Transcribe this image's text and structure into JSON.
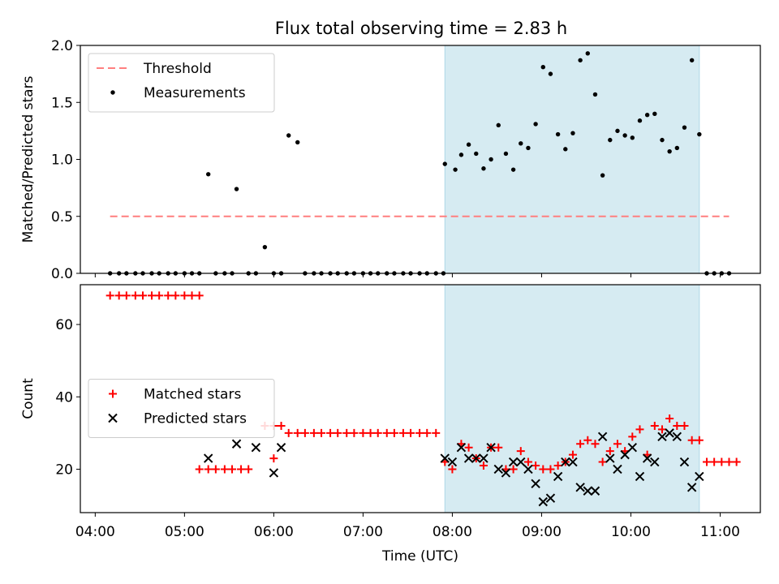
{
  "chart_data": {
    "type": "scatter",
    "title": "Flux total observing time = 2.83 h",
    "xlabel": "Time (UTC)",
    "x_ticks": [
      "04:00",
      "05:00",
      "06:00",
      "07:00",
      "08:00",
      "09:00",
      "10:00",
      "11:00"
    ],
    "x_range": [
      "03:50",
      "11:27"
    ],
    "shaded_interval": {
      "start": "07:55",
      "end": "10:46",
      "color": "#add8e6"
    },
    "panels": [
      {
        "ylabel": "Matched/Predicted stars",
        "ylim": [
          0,
          2.0
        ],
        "y_ticks": [
          "0.0",
          "0.5",
          "1.0",
          "1.5",
          "2.0"
        ],
        "legend": {
          "placement": "upper left"
        },
        "series": [
          {
            "name": "Threshold",
            "kind": "dashed-line",
            "color": "#ff7f7f",
            "points": [
              [
                "04:10",
                0.5
              ],
              [
                "11:06",
                0.5
              ]
            ]
          },
          {
            "name": "Measurements",
            "kind": "dots",
            "color": "#000000",
            "points": [
              [
                "04:10",
                0
              ],
              [
                "04:16",
                0
              ],
              [
                "04:21",
                0
              ],
              [
                "04:27",
                0
              ],
              [
                "04:32",
                0
              ],
              [
                "04:38",
                0
              ],
              [
                "04:43",
                0
              ],
              [
                "04:49",
                0
              ],
              [
                "04:54",
                0
              ],
              [
                "05:00",
                0
              ],
              [
                "05:05",
                0
              ],
              [
                "05:10",
                0
              ],
              [
                "05:16",
                0.87
              ],
              [
                "05:21",
                0
              ],
              [
                "05:27",
                0
              ],
              [
                "05:32",
                0
              ],
              [
                "05:35",
                0.74
              ],
              [
                "05:43",
                0
              ],
              [
                "05:48",
                0
              ],
              [
                "05:54",
                0.23
              ],
              [
                "06:00",
                0
              ],
              [
                "06:05",
                0
              ],
              [
                "06:10",
                1.21
              ],
              [
                "06:16",
                1.15
              ],
              [
                "06:21",
                0
              ],
              [
                "06:27",
                0
              ],
              [
                "06:32",
                0
              ],
              [
                "06:38",
                0
              ],
              [
                "06:43",
                0
              ],
              [
                "06:49",
                0
              ],
              [
                "06:54",
                0
              ],
              [
                "07:00",
                0
              ],
              [
                "07:05",
                0
              ],
              [
                "07:10",
                0
              ],
              [
                "07:16",
                0
              ],
              [
                "07:21",
                0
              ],
              [
                "07:27",
                0
              ],
              [
                "07:32",
                0
              ],
              [
                "07:38",
                0
              ],
              [
                "07:43",
                0
              ],
              [
                "07:49",
                0
              ],
              [
                "07:54",
                0
              ],
              [
                "07:55",
                0.96
              ],
              [
                "08:02",
                0.91
              ],
              [
                "08:06",
                1.04
              ],
              [
                "08:11",
                1.13
              ],
              [
                "08:16",
                1.05
              ],
              [
                "08:21",
                0.92
              ],
              [
                "08:26",
                1.0
              ],
              [
                "08:31",
                1.3
              ],
              [
                "08:36",
                1.05
              ],
              [
                "08:41",
                0.91
              ],
              [
                "08:46",
                1.14
              ],
              [
                "08:51",
                1.1
              ],
              [
                "08:56",
                1.31
              ],
              [
                "09:01",
                1.81
              ],
              [
                "09:06",
                1.75
              ],
              [
                "09:11",
                1.22
              ],
              [
                "09:16",
                1.09
              ],
              [
                "09:21",
                1.23
              ],
              [
                "09:26",
                1.87
              ],
              [
                "09:31",
                1.93
              ],
              [
                "09:36",
                1.57
              ],
              [
                "09:41",
                0.86
              ],
              [
                "09:46",
                1.17
              ],
              [
                "09:51",
                1.25
              ],
              [
                "09:56",
                1.21
              ],
              [
                "10:01",
                1.19
              ],
              [
                "10:06",
                1.34
              ],
              [
                "10:11",
                1.39
              ],
              [
                "10:16",
                1.4
              ],
              [
                "10:21",
                1.17
              ],
              [
                "10:26",
                1.07
              ],
              [
                "10:31",
                1.1
              ],
              [
                "10:36",
                1.28
              ],
              [
                "10:41",
                1.87
              ],
              [
                "10:46",
                1.22
              ],
              [
                "10:51",
                0
              ],
              [
                "10:56",
                0
              ],
              [
                "11:01",
                0
              ],
              [
                "11:06",
                0
              ]
            ]
          }
        ]
      },
      {
        "ylabel": "Count",
        "ylim": [
          8,
          71
        ],
        "y_ticks": [
          "20",
          "40",
          "60"
        ],
        "legend": {
          "placement": "center left"
        },
        "series": [
          {
            "name": "Matched stars",
            "kind": "plus",
            "color": "#ff0000",
            "points": [
              [
                "04:10",
                68
              ],
              [
                "04:16",
                68
              ],
              [
                "04:21",
                68
              ],
              [
                "04:27",
                68
              ],
              [
                "04:32",
                68
              ],
              [
                "04:38",
                68
              ],
              [
                "04:43",
                68
              ],
              [
                "04:49",
                68
              ],
              [
                "04:54",
                68
              ],
              [
                "05:00",
                68
              ],
              [
                "05:05",
                68
              ],
              [
                "05:10",
                68
              ],
              [
                "05:10",
                20
              ],
              [
                "05:16",
                20
              ],
              [
                "05:21",
                20
              ],
              [
                "05:27",
                20
              ],
              [
                "05:32",
                20
              ],
              [
                "05:38",
                20
              ],
              [
                "05:43",
                20
              ],
              [
                "05:54",
                32
              ],
              [
                "06:00",
                32
              ],
              [
                "06:05",
                32
              ],
              [
                "06:00",
                23
              ],
              [
                "06:10",
                30
              ],
              [
                "06:16",
                30
              ],
              [
                "06:21",
                30
              ],
              [
                "06:27",
                30
              ],
              [
                "06:32",
                30
              ],
              [
                "06:38",
                30
              ],
              [
                "06:43",
                30
              ],
              [
                "06:49",
                30
              ],
              [
                "06:54",
                30
              ],
              [
                "07:00",
                30
              ],
              [
                "07:05",
                30
              ],
              [
                "07:10",
                30
              ],
              [
                "07:16",
                30
              ],
              [
                "07:21",
                30
              ],
              [
                "07:27",
                30
              ],
              [
                "07:32",
                30
              ],
              [
                "07:38",
                30
              ],
              [
                "07:43",
                30
              ],
              [
                "07:49",
                30
              ],
              [
                "07:55",
                22
              ],
              [
                "08:00",
                20
              ],
              [
                "08:06",
                27
              ],
              [
                "08:11",
                26
              ],
              [
                "08:16",
                23
              ],
              [
                "08:21",
                21
              ],
              [
                "08:26",
                26
              ],
              [
                "08:31",
                26
              ],
              [
                "08:36",
                20
              ],
              [
                "08:41",
                20
              ],
              [
                "08:46",
                25
              ],
              [
                "08:51",
                22
              ],
              [
                "08:56",
                21
              ],
              [
                "09:01",
                20
              ],
              [
                "09:06",
                20
              ],
              [
                "09:11",
                21
              ],
              [
                "09:16",
                22
              ],
              [
                "09:21",
                24
              ],
              [
                "09:26",
                27
              ],
              [
                "09:31",
                28
              ],
              [
                "09:36",
                27
              ],
              [
                "09:41",
                22
              ],
              [
                "09:46",
                25
              ],
              [
                "09:51",
                27
              ],
              [
                "09:56",
                25
              ],
              [
                "10:01",
                29
              ],
              [
                "10:06",
                31
              ],
              [
                "10:11",
                24
              ],
              [
                "10:16",
                32
              ],
              [
                "10:21",
                31
              ],
              [
                "10:26",
                34
              ],
              [
                "10:31",
                32
              ],
              [
                "10:36",
                32
              ],
              [
                "10:41",
                28
              ],
              [
                "10:46",
                28
              ],
              [
                "10:51",
                22
              ],
              [
                "10:56",
                22
              ],
              [
                "11:01",
                22
              ],
              [
                "11:06",
                22
              ],
              [
                "11:11",
                22
              ]
            ]
          },
          {
            "name": "Predicted stars",
            "kind": "x",
            "color": "#000000",
            "points": [
              [
                "05:16",
                23
              ],
              [
                "05:35",
                27
              ],
              [
                "05:48",
                26
              ],
              [
                "06:00",
                19
              ],
              [
                "06:05",
                26
              ],
              [
                "07:55",
                23
              ],
              [
                "08:00",
                22
              ],
              [
                "08:06",
                26
              ],
              [
                "08:11",
                23
              ],
              [
                "08:16",
                23
              ],
              [
                "08:21",
                23
              ],
              [
                "08:26",
                26
              ],
              [
                "08:31",
                20
              ],
              [
                "08:36",
                19
              ],
              [
                "08:41",
                22
              ],
              [
                "08:46",
                22
              ],
              [
                "08:51",
                20
              ],
              [
                "08:56",
                16
              ],
              [
                "09:01",
                11
              ],
              [
                "09:06",
                12
              ],
              [
                "09:11",
                18
              ],
              [
                "09:16",
                22
              ],
              [
                "09:21",
                22
              ],
              [
                "09:26",
                15
              ],
              [
                "09:31",
                14
              ],
              [
                "09:36",
                14
              ],
              [
                "09:41",
                29
              ],
              [
                "09:46",
                23
              ],
              [
                "09:51",
                20
              ],
              [
                "09:56",
                24
              ],
              [
                "10:01",
                26
              ],
              [
                "10:06",
                18
              ],
              [
                "10:11",
                23
              ],
              [
                "10:16",
                22
              ],
              [
                "10:21",
                29
              ],
              [
                "10:26",
                30
              ],
              [
                "10:31",
                29
              ],
              [
                "10:36",
                22
              ],
              [
                "10:41",
                15
              ],
              [
                "10:46",
                18
              ]
            ]
          }
        ]
      }
    ]
  }
}
